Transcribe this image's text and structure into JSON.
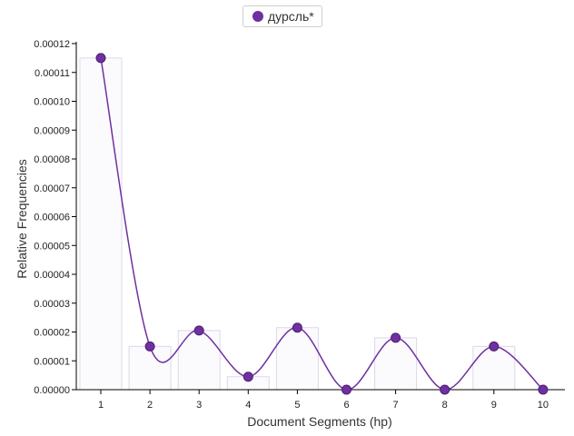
{
  "legend": {
    "label": "дурсль*",
    "color": "#7030a0"
  },
  "chart_data": {
    "type": "line",
    "title": "",
    "xlabel": "Document Segments (hp)",
    "ylabel": "Relative Frequencies",
    "categories": [
      "1",
      "2",
      "3",
      "4",
      "5",
      "6",
      "7",
      "8",
      "9",
      "10"
    ],
    "ylim": [
      0,
      0.00012
    ],
    "yticks": [
      "0.00000",
      "0.00001",
      "0.00002",
      "0.00003",
      "0.00004",
      "0.00005",
      "0.00006",
      "0.00007",
      "0.00008",
      "0.00009",
      "0.00010",
      "0.00011",
      "0.00012"
    ],
    "grid": false,
    "legend_position": "top-center",
    "series": [
      {
        "name": "дурсль*",
        "color": "#7030a0",
        "values": [
          0.000115,
          1.5e-05,
          2.05e-05,
          4.5e-06,
          2.15e-05,
          0.0,
          1.8e-05,
          0.0,
          1.5e-05,
          0.0
        ],
        "bar_values": [
          0.000115,
          1.5e-05,
          2.05e-05,
          4.5e-06,
          2.15e-05,
          0.0,
          1.8e-05,
          0.0,
          1.5e-05,
          0.0
        ]
      }
    ]
  }
}
